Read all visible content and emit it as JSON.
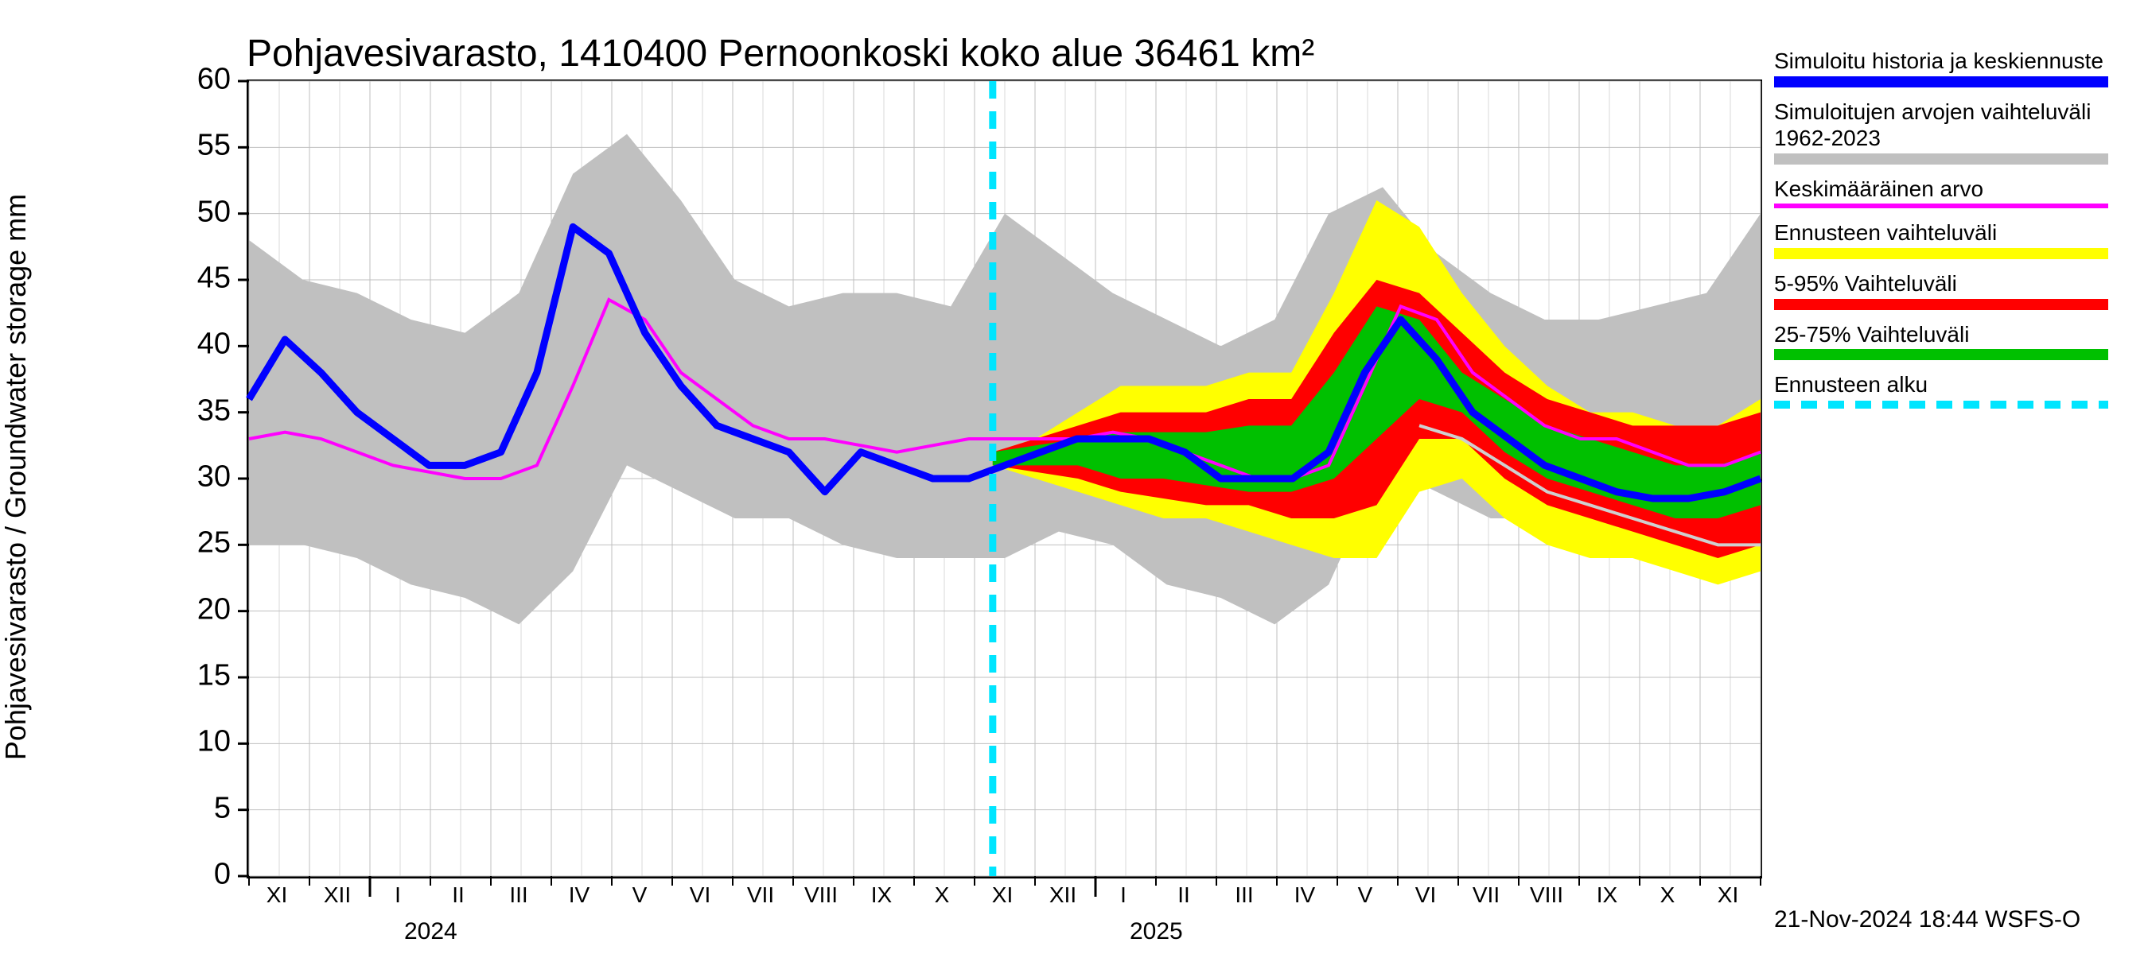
{
  "title": "Pohjavesivarasto, 1410400 Pernoonkoski koko alue 36461 km²",
  "y_axis_label": "Pohjavesivarasto / Groundwater storage   mm",
  "footer": "21-Nov-2024 18:44 WSFS-O",
  "legend": {
    "sim_hist": "Simuloitu historia ja keskiennuste",
    "sim_range": "Simuloitujen arvojen vaihteluväli 1962-2023",
    "avg": "Keskimääräinen arvo",
    "forecast_range": "Ennusteen vaihteluväli",
    "p5_95": "5-95% Vaihteluväli",
    "p25_75": "25-75% Vaihteluväli",
    "forecast_start": "Ennusteen alku"
  },
  "colors": {
    "background": "#ffffff",
    "grid": "#bfbfbf",
    "blue": "#0000ff",
    "gray_band": "#c0c0c0",
    "magenta": "#ff00ff",
    "yellow": "#ffff00",
    "red": "#ff0000",
    "green": "#00c000",
    "cyan": "#00e5ff",
    "ltgray_line": "#cfcfcf"
  },
  "typography": {
    "title_fontsize": 48,
    "axis_label_fontsize": 36,
    "tick_fontsize": 38,
    "x_tick_fontsize": 28,
    "legend_fontsize": 28
  },
  "axes": {
    "ylim": [
      0,
      60
    ],
    "yticks": [
      0,
      5,
      10,
      15,
      20,
      25,
      30,
      35,
      40,
      45,
      50,
      55,
      60
    ],
    "x_months": [
      "XI",
      "XII",
      "I",
      "II",
      "III",
      "IV",
      "V",
      "VI",
      "VII",
      "VIII",
      "IX",
      "X",
      "XI",
      "XII",
      "I",
      "II",
      "III",
      "IV",
      "V",
      "VI",
      "VII",
      "VIII",
      "IX",
      "X",
      "XI"
    ],
    "x_count": 25,
    "year_labels": {
      "2024": 3,
      "2025": 15
    }
  },
  "chart": {
    "type": "line_band_forecast",
    "forecast_start_index": 12.3,
    "gray_band_upper": [
      48,
      45,
      44,
      42,
      41,
      44,
      53,
      56,
      51,
      45,
      43,
      44,
      44,
      43,
      50,
      47,
      44,
      42,
      40,
      42,
      50,
      52,
      47,
      44,
      42,
      42,
      43,
      44,
      50
    ],
    "gray_band_lower": [
      25,
      25,
      24,
      22,
      21,
      19,
      23,
      31,
      29,
      27,
      27,
      25,
      24,
      24,
      24,
      26,
      25,
      22,
      21,
      19,
      22,
      31,
      29,
      27,
      27,
      25,
      24,
      24,
      24
    ],
    "blue": [
      36,
      40.5,
      38,
      35,
      33,
      31,
      31,
      32,
      38,
      49,
      47,
      41,
      37,
      34,
      33,
      32,
      29,
      32,
      31,
      30,
      30,
      31,
      32,
      33,
      33,
      33,
      32,
      30,
      30,
      30,
      32,
      38,
      42,
      39,
      35,
      33,
      31,
      30,
      29,
      28.5,
      28.5,
      29,
      30
    ],
    "magenta": [
      33,
      33.5,
      33,
      32,
      31,
      30.5,
      30,
      30,
      31,
      37,
      43.5,
      42,
      38,
      36,
      34,
      33,
      33,
      32.5,
      32,
      32.5,
      33,
      33,
      33,
      33,
      33.5,
      33,
      32,
      31,
      30,
      30,
      31,
      37,
      43,
      42,
      38,
      36,
      34,
      33,
      33,
      32,
      31,
      31,
      32
    ],
    "yellow_upper": [
      32,
      33,
      35,
      37,
      37,
      37,
      38,
      38,
      44,
      51,
      49,
      44,
      40,
      37,
      35,
      35,
      34,
      34,
      36
    ],
    "yellow_lower": [
      31,
      30,
      29,
      28,
      27,
      27,
      26,
      25,
      24,
      24,
      29,
      30,
      27,
      25,
      24,
      24,
      23,
      22,
      23
    ],
    "red_upper": [
      32,
      33,
      34,
      35,
      35,
      35,
      36,
      36,
      41,
      45,
      44,
      41,
      38,
      36,
      35,
      34,
      34,
      34,
      35
    ],
    "red_lower": [
      31,
      30.5,
      30,
      29,
      28.5,
      28,
      28,
      27,
      27,
      28,
      33,
      33,
      30,
      28,
      27,
      26,
      25,
      24,
      25
    ],
    "green_upper": [
      32,
      32.5,
      33,
      33.5,
      33.5,
      33.5,
      34,
      34,
      38,
      43,
      42,
      38,
      36,
      34,
      33,
      32,
      31,
      31,
      32
    ],
    "green_lower": [
      31,
      31,
      31,
      30,
      30,
      29.5,
      29,
      29,
      30,
      33,
      36,
      35,
      32,
      30,
      29,
      28,
      27,
      27,
      28
    ],
    "ltgray_line": [
      null,
      null,
      null,
      null,
      null,
      null,
      null,
      null,
      null,
      null,
      34,
      33,
      31,
      29,
      28,
      27,
      26,
      25,
      25
    ]
  }
}
